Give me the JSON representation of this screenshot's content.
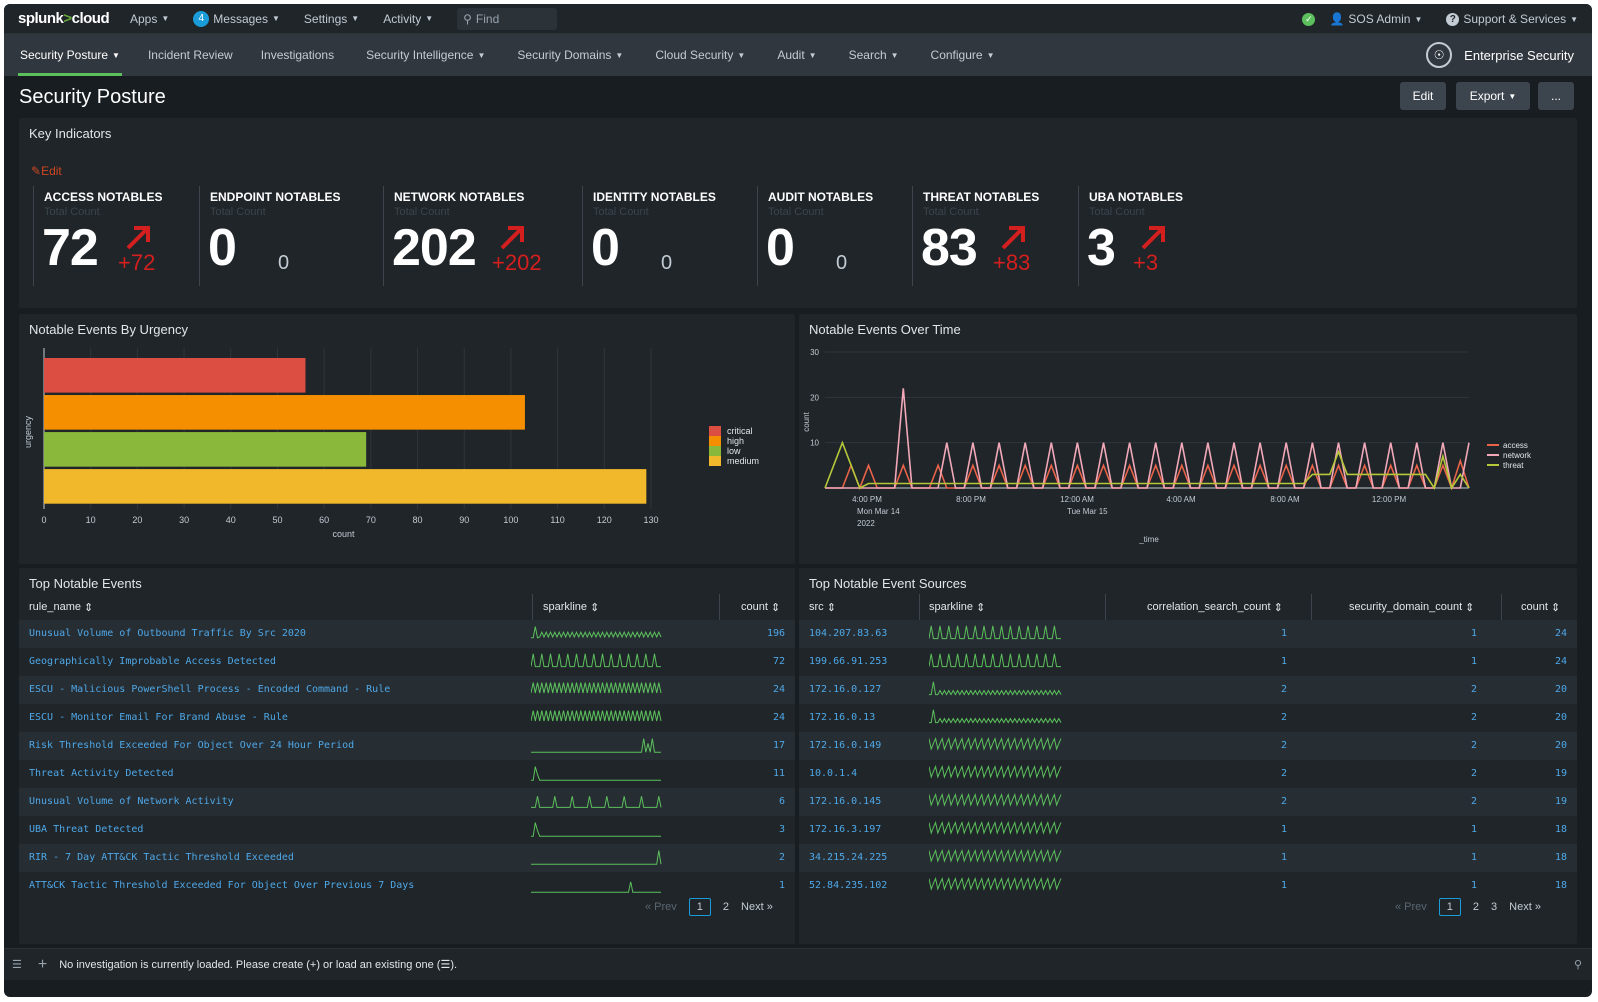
{
  "topbar": {
    "logo_main": "splunk",
    "logo_gt": ">",
    "logo_sub": "cloud",
    "apps": "Apps",
    "messages_count": "4",
    "messages": "Messages",
    "settings": "Settings",
    "activity": "Activity",
    "find": "Find",
    "user": "SOS Admin",
    "support": "Support & Services"
  },
  "appbar": {
    "items": [
      "Security Posture",
      "Incident Review",
      "Investigations",
      "Security Intelligence",
      "Security Domains",
      "Cloud Security",
      "Audit",
      "Search",
      "Configure"
    ],
    "app_name": "Enterprise Security"
  },
  "page": {
    "title": "Security Posture",
    "edit_btn": "Edit",
    "export_btn": "Export",
    "more_btn": "..."
  },
  "key_indicators": {
    "title": "Key Indicators",
    "edit": "Edit",
    "subtitle": "Total Count",
    "items": [
      {
        "name": "ACCESS NOTABLES",
        "value": "72",
        "delta": "+72",
        "trend": "up"
      },
      {
        "name": "ENDPOINT NOTABLES",
        "value": "0",
        "delta": "0",
        "trend": "none"
      },
      {
        "name": "NETWORK NOTABLES",
        "value": "202",
        "delta": "+202",
        "trend": "up"
      },
      {
        "name": "IDENTITY NOTABLES",
        "value": "0",
        "delta": "0",
        "trend": "none"
      },
      {
        "name": "AUDIT NOTABLES",
        "value": "0",
        "delta": "0",
        "trend": "none"
      },
      {
        "name": "THREAT NOTABLES",
        "value": "83",
        "delta": "+83",
        "trend": "up"
      },
      {
        "name": "UBA NOTABLES",
        "value": "3",
        "delta": "+3",
        "trend": "up"
      }
    ]
  },
  "chart_data": [
    {
      "type": "bar",
      "orientation": "horizontal",
      "title": "Notable Events By Urgency",
      "xlabel": "count",
      "ylabel": "urgency",
      "categories": [
        "critical",
        "high",
        "low",
        "medium"
      ],
      "values": [
        56,
        103,
        69,
        129
      ],
      "xlim": [
        0,
        130
      ],
      "xticks": [
        "0",
        "10",
        "20",
        "30",
        "40",
        "50",
        "60",
        "70",
        "80",
        "90",
        "100",
        "110",
        "120",
        "130"
      ],
      "legend": [
        "critical",
        "high",
        "low",
        "medium"
      ],
      "legend_position": "right",
      "colors": [
        "#dc4e41",
        "#f58f00",
        "#8ab83a",
        "#f1b82b"
      ],
      "grid": true
    },
    {
      "type": "line",
      "title": "Notable Events Over Time",
      "xlabel": "_time",
      "ylabel": "count",
      "ylim": [
        0,
        30
      ],
      "yticks": [
        "10",
        "20",
        "30"
      ],
      "xticks": [
        "4:00 PM",
        "8:00 PM",
        "12:00 AM",
        "4:00 AM",
        "8:00 AM",
        "12:00 PM"
      ],
      "xticks_sub": [
        "Mon Mar 14",
        "",
        "Tue Mar 15",
        "",
        "",
        ""
      ],
      "xticks_sub2": [
        "2022",
        "",
        "",
        "",
        "",
        ""
      ],
      "legend_position": "right",
      "series": [
        {
          "name": "access",
          "color": "#e8634a",
          "values": [
            0,
            0,
            0,
            5,
            0,
            5,
            0,
            0,
            0,
            5,
            0,
            0,
            0,
            5,
            0,
            0,
            0,
            5,
            0,
            0,
            5,
            0,
            0,
            5,
            0,
            0,
            5,
            0,
            0,
            5,
            0,
            0,
            5,
            0,
            0,
            5,
            0,
            0,
            5,
            0,
            0,
            5,
            0,
            0,
            5,
            0,
            0,
            5,
            0,
            0,
            5,
            0,
            0,
            5,
            0,
            0,
            5,
            0,
            0,
            5,
            0,
            0,
            5,
            0,
            0,
            5,
            0,
            0,
            5,
            0,
            0,
            5,
            0,
            6,
            0
          ]
        },
        {
          "name": "network",
          "color": "#f1a8b8",
          "values": [
            0,
            0,
            0,
            0,
            0,
            0,
            0,
            0,
            0,
            22,
            0,
            0,
            0,
            0,
            10,
            0,
            0,
            10,
            0,
            0,
            10,
            0,
            0,
            10,
            0,
            0,
            10,
            0,
            0,
            10,
            0,
            0,
            10,
            0,
            0,
            10,
            0,
            0,
            10,
            0,
            0,
            10,
            0,
            0,
            10,
            0,
            0,
            10,
            0,
            0,
            10,
            0,
            0,
            10,
            0,
            0,
            10,
            0,
            0,
            10,
            0,
            0,
            10,
            0,
            0,
            10,
            0,
            0,
            10,
            0,
            0,
            10,
            0,
            0,
            10
          ]
        },
        {
          "name": "threat",
          "color": "#b6c73a",
          "values": [
            0,
            5,
            10,
            5,
            0,
            1,
            1,
            1,
            1,
            1,
            1,
            1,
            1,
            1,
            1,
            1,
            1,
            1,
            1,
            1,
            1,
            1,
            1,
            1,
            1,
            1,
            1,
            1,
            1,
            1,
            1,
            1,
            1,
            1,
            1,
            1,
            1,
            1,
            1,
            1,
            1,
            1,
            1,
            1,
            1,
            1,
            1,
            1,
            1,
            1,
            1,
            1,
            1,
            1,
            1,
            1,
            3,
            3,
            3,
            8,
            3,
            3,
            3,
            3,
            3,
            3,
            3,
            3,
            3,
            3,
            0,
            7,
            0,
            3,
            0
          ]
        }
      ],
      "grid": true
    }
  ],
  "top_events": {
    "title": "Top Notable Events",
    "headers": {
      "rule_name": "rule_name",
      "sparkline": "sparkline",
      "count": "count"
    },
    "rows": [
      {
        "rule_name": "Unusual Volume of Outbound Traffic By Src 2020",
        "count": "196",
        "spark": "dense"
      },
      {
        "rule_name": "Geographically Improbable Access Detected",
        "count": "72",
        "spark": "peaks"
      },
      {
        "rule_name": "ESCU - Malicious PowerShell Process - Encoded Command - Rule",
        "count": "24",
        "spark": "zigzag"
      },
      {
        "rule_name": "ESCU - Monitor Email For Brand Abuse - Rule",
        "count": "24",
        "spark": "zigzag"
      },
      {
        "rule_name": "Risk Threshold Exceeded For Object Over 24 Hour Period",
        "count": "17",
        "spark": "tail"
      },
      {
        "rule_name": "Threat Activity Detected",
        "count": "11",
        "spark": "head"
      },
      {
        "rule_name": "Unusual Volume of Network Activity",
        "count": "6",
        "spark": "sparse"
      },
      {
        "rule_name": "UBA Threat Detected",
        "count": "3",
        "spark": "head"
      },
      {
        "rule_name": "RIR - 7 Day ATT&CK Tactic Threshold Exceeded",
        "count": "2",
        "spark": "end"
      },
      {
        "rule_name": "ATT&CK Tactic Threshold Exceeded For Object Over Previous 7 Days",
        "count": "1",
        "spark": "mid"
      }
    ],
    "pager": {
      "prev": "« Prev",
      "pages": [
        "1",
        "2"
      ],
      "next": "Next »"
    }
  },
  "top_sources": {
    "title": "Top Notable Event Sources",
    "headers": {
      "src": "src",
      "sparkline": "sparkline",
      "corr": "correlation_search_count",
      "dom": "security_domain_count",
      "count": "count"
    },
    "rows": [
      {
        "src": "104.207.83.63",
        "corr": "1",
        "dom": "1",
        "count": "24",
        "spark": "peaks"
      },
      {
        "src": "199.66.91.253",
        "corr": "1",
        "dom": "1",
        "count": "24",
        "spark": "peaks"
      },
      {
        "src": "172.16.0.127",
        "corr": "2",
        "dom": "2",
        "count": "20",
        "spark": "headzz"
      },
      {
        "src": "172.16.0.13",
        "corr": "2",
        "dom": "2",
        "count": "20",
        "spark": "headzz"
      },
      {
        "src": "172.16.0.149",
        "corr": "2",
        "dom": "2",
        "count": "20",
        "spark": "wave"
      },
      {
        "src": "10.0.1.4",
        "corr": "2",
        "dom": "2",
        "count": "19",
        "spark": "wave"
      },
      {
        "src": "172.16.0.145",
        "corr": "2",
        "dom": "2",
        "count": "19",
        "spark": "wave"
      },
      {
        "src": "172.16.3.197",
        "corr": "1",
        "dom": "1",
        "count": "18",
        "spark": "wave"
      },
      {
        "src": "34.215.24.225",
        "corr": "1",
        "dom": "1",
        "count": "18",
        "spark": "wave"
      },
      {
        "src": "52.84.235.102",
        "corr": "1",
        "dom": "1",
        "count": "18",
        "spark": "wave"
      }
    ],
    "pager": {
      "prev": "« Prev",
      "pages": [
        "1",
        "2",
        "3"
      ],
      "next": "Next »"
    }
  },
  "footer": {
    "plus": "+",
    "message": "No investigation is currently loaded. Please create (+) or load an existing one (☰)."
  },
  "colors": {
    "accent_green": "#5cc05c",
    "link_blue": "#4fa8e8",
    "alert_red": "#d41f1f",
    "spark_green": "#5cc05c"
  }
}
